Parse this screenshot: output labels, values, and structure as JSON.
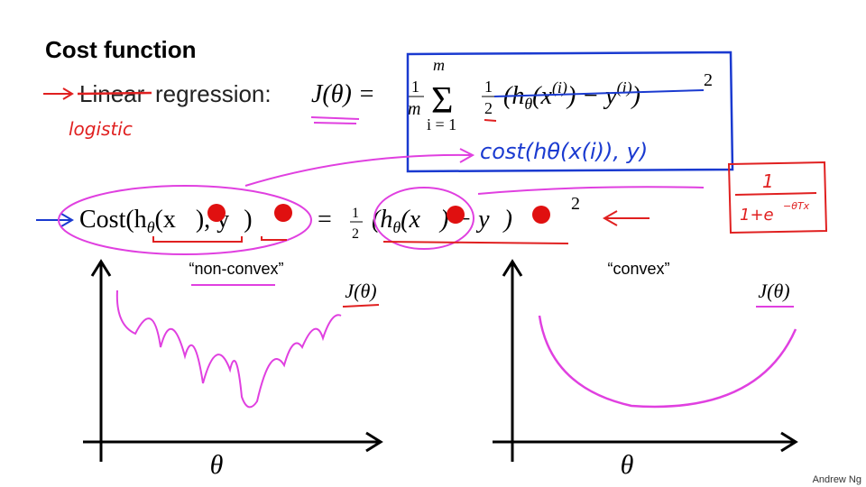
{
  "title": "Cost function",
  "regression_line": {
    "struck": "Linear",
    "label": "regression:",
    "handwritten": "logistic"
  },
  "j_formula": {
    "lhs": "J(θ) =",
    "frac": [
      "1",
      "m"
    ],
    "sum": {
      "symbol": "Σ",
      "top": "m",
      "bottom": "i = 1"
    },
    "half": [
      "1",
      "2"
    ],
    "body": [
      "(h",
      "θ",
      "(x",
      "(i)",
      ") − y",
      "(i)",
      ")"
    ],
    "power": "2",
    "handwritten": "cost(hθ(x(i)), y)"
  },
  "cost_formula": {
    "lhs": [
      "Cost(h",
      "θ",
      "(x",
      "), y",
      ")"
    ],
    "eq": "=",
    "half": [
      "1",
      "2"
    ],
    "rhs": [
      "(h",
      "θ",
      "(x",
      ") − y",
      ")"
    ],
    "power": "2",
    "sigmoid": [
      "1",
      "1+e",
      "−θTx"
    ]
  },
  "plots": [
    {
      "caption": "“non-convex”",
      "ylabel": "J(θ)",
      "xlabel": "θ"
    },
    {
      "caption": "“convex”",
      "ylabel": "J(θ)",
      "xlabel": "θ"
    }
  ],
  "footer": "Andrew Ng"
}
